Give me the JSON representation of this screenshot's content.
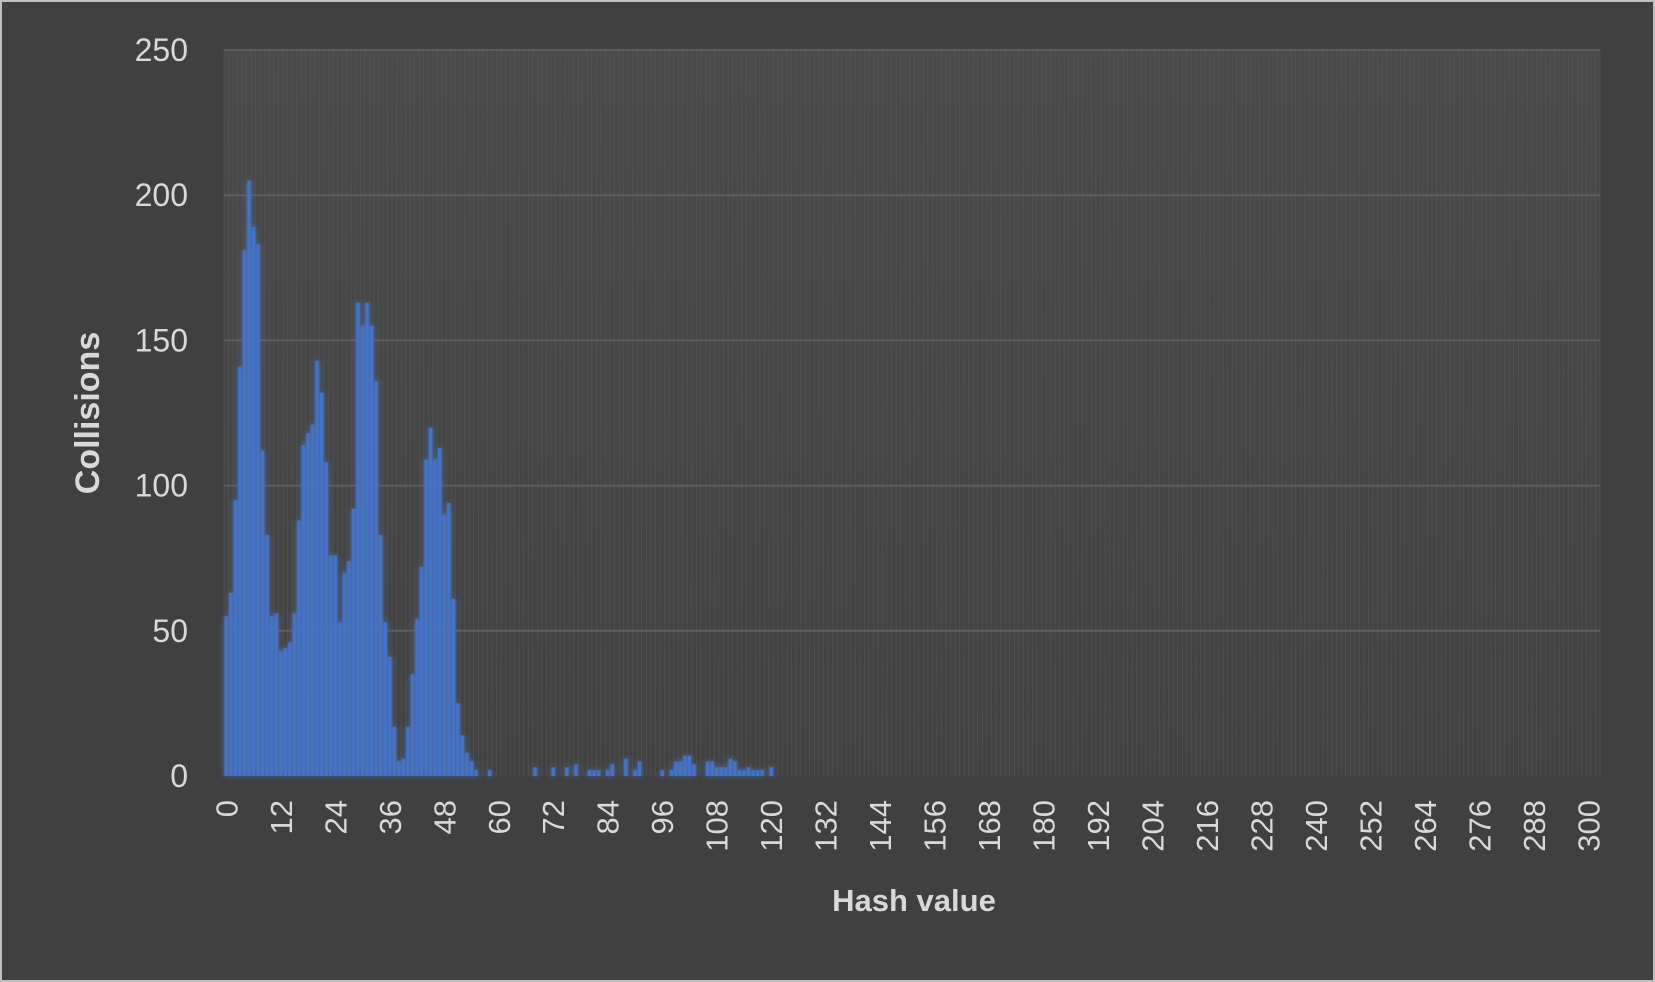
{
  "chart_data": {
    "type": "bar",
    "title": "",
    "xlabel": "Hash value",
    "ylabel": "Collisions",
    "ylim": [
      0,
      250
    ],
    "xlim": [
      0,
      303
    ],
    "y_ticks": [
      0,
      50,
      100,
      150,
      200,
      250
    ],
    "x_ticks": [
      0,
      12,
      24,
      36,
      48,
      60,
      72,
      84,
      96,
      108,
      120,
      132,
      144,
      156,
      168,
      180,
      192,
      204,
      216,
      228,
      240,
      252,
      264,
      276,
      288,
      300
    ],
    "grid": "horizontal",
    "legend": "none",
    "bar_color": "#4472c4",
    "plot_background": "#464646",
    "background": "#404040",
    "text_color": "#d9d9d9",
    "x": [
      0,
      1,
      2,
      3,
      4,
      5,
      6,
      7,
      8,
      9,
      10,
      11,
      12,
      13,
      14,
      15,
      16,
      17,
      18,
      19,
      20,
      21,
      22,
      23,
      24,
      25,
      26,
      27,
      28,
      29,
      30,
      31,
      32,
      33,
      34,
      35,
      36,
      37,
      38,
      39,
      40,
      41,
      42,
      43,
      44,
      45,
      46,
      47,
      48,
      49,
      50,
      51,
      52,
      53,
      54,
      55,
      56,
      57,
      58,
      59,
      60,
      61,
      62,
      63,
      64,
      65,
      66,
      67,
      68,
      69,
      70,
      71,
      72,
      73,
      74,
      75,
      76,
      77,
      78,
      79,
      80,
      81,
      82,
      83,
      84,
      85,
      86,
      87,
      88,
      89,
      90,
      91,
      92,
      93,
      94,
      95,
      96,
      97,
      98,
      99,
      100,
      101,
      102,
      103,
      104,
      105,
      106,
      107,
      108,
      109,
      110,
      111,
      112,
      113,
      114,
      115,
      116,
      117,
      118,
      119,
      120
    ],
    "values": [
      55,
      63,
      95,
      141,
      181,
      205,
      189,
      183,
      112,
      83,
      55,
      56,
      43,
      44,
      46,
      56,
      88,
      114,
      118,
      121,
      143,
      132,
      108,
      76,
      76,
      53,
      70,
      74,
      92,
      163,
      155,
      163,
      155,
      136,
      83,
      53,
      41,
      17,
      5,
      6,
      17,
      35,
      54,
      72,
      109,
      120,
      109,
      113,
      90,
      94,
      61,
      25,
      14,
      8,
      5,
      2,
      0,
      0,
      2,
      0,
      0,
      0,
      0,
      0,
      0,
      0,
      0,
      0,
      3,
      0,
      0,
      0,
      3,
      0,
      0,
      3,
      0,
      4,
      0,
      0,
      2,
      2,
      2,
      0,
      2,
      4,
      0,
      0,
      6,
      0,
      2,
      5,
      0,
      0,
      0,
      0,
      2,
      0,
      2,
      5,
      5,
      7,
      7,
      4,
      0,
      0,
      5,
      5,
      3,
      3,
      3,
      6,
      5,
      2,
      2,
      3,
      2,
      2,
      2,
      0,
      3
    ]
  }
}
